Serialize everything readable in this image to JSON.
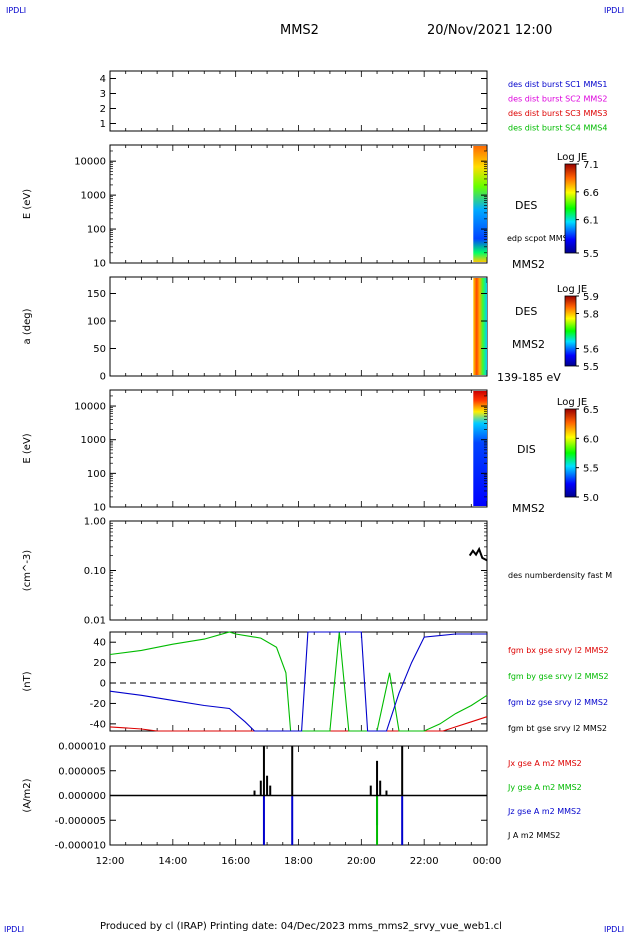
{
  "corner_marks": {
    "top_left": "IPDLI",
    "top_right": "IPDLI",
    "bottom_left": "IPDLI",
    "bottom_right": "IPDLI"
  },
  "header": {
    "spacecraft": "MMS2",
    "datetime": "20/Nov/2021 12:00"
  },
  "footer": {
    "text": "Produced by cl (IRAP)   Printing date: 04/Dec/2023   mms_mms2_srvy_vue_web1.cl"
  },
  "time_axis": {
    "start": "12:00",
    "end": "00:00",
    "ticks": [
      "12:00",
      "14:00",
      "16:00",
      "18:00",
      "20:00",
      "22:00",
      "00:00"
    ]
  },
  "colors": {
    "blue": "#0000cc",
    "magenta": "#dd00dd",
    "red": "#dd0000",
    "green": "#00bb00",
    "black": "#000000"
  },
  "chart_data": [
    {
      "type": "line",
      "panel": "burst",
      "ylabel": "",
      "ylim": [
        0.5,
        4.5
      ],
      "yticks": [
        "1",
        "2",
        "3",
        "4"
      ],
      "legend": [
        "des dist burst SC1 MMS1",
        "des dist burst SC2 MMS2",
        "des dist burst SC3 MMS3",
        "des dist burst SC4 MMS4"
      ],
      "legend_colors": [
        "#0000cc",
        "#dd00dd",
        "#dd0000",
        "#00bb00"
      ],
      "series": []
    },
    {
      "type": "heatmap",
      "panel": "des_energy",
      "ylabel": "E (eV)",
      "yscale": "log",
      "ylim": [
        10,
        30000
      ],
      "yticks": [
        "10",
        "100",
        "1000",
        "10000"
      ],
      "labels": [
        "DES",
        "edp scpot MMS2",
        "MMS2"
      ],
      "colorbar": {
        "title": "Log JE",
        "ticks": [
          "7.1",
          "6.6",
          "6.1",
          "5.5"
        ],
        "range": [
          5.5,
          7.1
        ]
      },
      "data_time_range": [
        "23:30",
        "24:00"
      ]
    },
    {
      "type": "heatmap",
      "panel": "des_pitch",
      "ylabel": "a (deg)",
      "ylim": [
        0,
        180
      ],
      "yticks": [
        "0",
        "50",
        "100",
        "150"
      ],
      "labels": [
        "DES",
        "MMS2",
        "139-185 eV"
      ],
      "colorbar": {
        "title": "Log JE",
        "ticks": [
          "5.9",
          "5.8",
          "5.6",
          "5.5"
        ],
        "range": [
          5.5,
          5.9
        ]
      },
      "data_time_range": [
        "23:30",
        "24:00"
      ]
    },
    {
      "type": "heatmap",
      "panel": "dis_energy",
      "ylabel": "E (eV)",
      "yscale": "log",
      "ylim": [
        10,
        30000
      ],
      "yticks": [
        "10",
        "100",
        "1000",
        "10000"
      ],
      "labels": [
        "DIS",
        "MMS2"
      ],
      "colorbar": {
        "title": "Log JE",
        "ticks": [
          "6.5",
          "6.0",
          "5.5",
          "5.0"
        ],
        "range": [
          5.0,
          6.5
        ]
      },
      "data_time_range": [
        "23:30",
        "24:00"
      ]
    },
    {
      "type": "line",
      "panel": "density",
      "ylabel": "(cm^-3)",
      "yscale": "log",
      "ylim": [
        0.01,
        1.0
      ],
      "yticks": [
        "0.01",
        "0.10",
        "1.00"
      ],
      "legend": [
        "des numberdensity fast M"
      ],
      "legend_colors": [
        "#000000"
      ],
      "series": [
        {
          "name": "des numberdensity fast M",
          "x": [
            23.45,
            23.55,
            23.65,
            23.75,
            23.85,
            24.0
          ],
          "values": [
            0.2,
            0.25,
            0.21,
            0.27,
            0.18,
            0.16
          ]
        }
      ]
    },
    {
      "type": "line",
      "panel": "fgm",
      "ylabel": "(nT)",
      "ylim": [
        -47,
        50
      ],
      "yticks": [
        "-40",
        "-20",
        "0",
        "20",
        "40"
      ],
      "legend": [
        "fgm bx gse srvy l2 MMS2",
        "fgm by gse srvy l2 MMS2",
        "fgm bz gse srvy l2 MMS2",
        "fgm bt gse srvy l2 MMS2"
      ],
      "legend_colors": [
        "#dd0000",
        "#00bb00",
        "#0000cc",
        "#000000"
      ],
      "series": [
        {
          "name": "fgm bx gse srvy l2 MMS2",
          "x": [
            12.0,
            12.5,
            13.0,
            13.5,
            22.6,
            23.0,
            23.5,
            24.0
          ],
          "values": [
            -43,
            -44,
            -45,
            -47,
            -47,
            -43,
            -38,
            -33
          ]
        },
        {
          "name": "fgm by gse srvy l2 MMS2",
          "x": [
            12.0,
            13.0,
            14.0,
            15.0,
            15.8,
            16.0,
            16.8,
            17.3,
            17.6,
            17.75,
            18.2,
            19.0,
            19.3,
            19.6,
            20.5,
            20.9,
            21.2,
            21.5,
            22.0,
            22.5,
            23.0,
            23.5,
            24.0
          ],
          "values": [
            28,
            32,
            38,
            43,
            50,
            48,
            44,
            35,
            10,
            -47,
            -47,
            -47,
            50,
            -47,
            -47,
            10,
            -47,
            -47,
            -47,
            -40,
            -30,
            -22,
            -12
          ]
        },
        {
          "name": "fgm bz gse srvy l2 MMS2",
          "x": [
            12.0,
            13.0,
            14.0,
            15.0,
            15.8,
            16.3,
            16.6,
            18.1,
            18.3,
            20.0,
            20.2,
            20.8,
            21.2,
            21.6,
            22.0,
            23.0,
            24.0
          ],
          "values": [
            -8,
            -12,
            -17,
            -22,
            -25,
            -38,
            -47,
            -47,
            50,
            50,
            -47,
            -47,
            -10,
            20,
            45,
            48,
            48
          ]
        }
      ],
      "reference_line": 0
    },
    {
      "type": "line",
      "panel": "current",
      "ylabel": "(A/m2)",
      "ylim": [
        -1e-05,
        1e-05
      ],
      "yticks": [
        "-0.000010",
        "-0.000005",
        "0.000000",
        "0.000005",
        "0.000010"
      ],
      "legend": [
        "Jx gse A m2 MMS2",
        "Jy gse A m2 MMS2",
        "Jz gse A m2 MMS2",
        "J A m2 MMS2"
      ],
      "legend_colors": [
        "#dd0000",
        "#00bb00",
        "#0000cc",
        "#000000"
      ],
      "series": [
        {
          "name": "J A m2 MMS2",
          "x": [
            16.6,
            16.8,
            16.9,
            17.0,
            17.1,
            17.8,
            20.3,
            20.5,
            20.6,
            20.8,
            21.3
          ],
          "values": [
            1e-06,
            3e-06,
            1e-05,
            4e-06,
            2e-06,
            1e-05,
            2e-06,
            7e-06,
            3e-06,
            1e-06,
            1e-05
          ]
        },
        {
          "name": "Jz gse A m2 MMS2",
          "x": [
            16.9,
            17.8,
            20.5,
            21.3
          ],
          "values": [
            -1e-05,
            -1e-05,
            -6e-06,
            -1e-05
          ]
        },
        {
          "name": "Jy gse A m2 MMS2",
          "x": [
            20.5
          ],
          "values": [
            -1e-05
          ]
        }
      ]
    }
  ]
}
